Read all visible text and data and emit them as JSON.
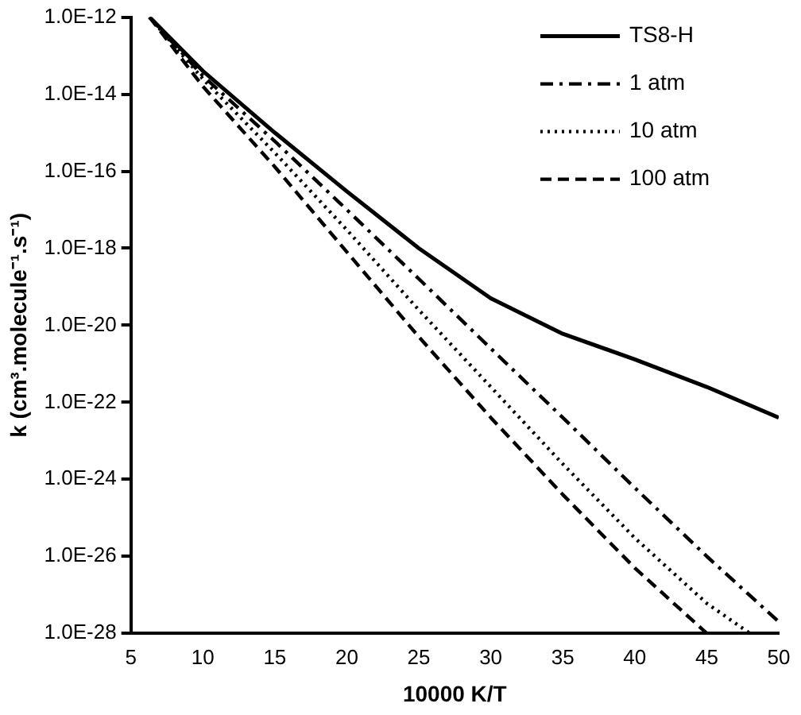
{
  "chart_data": {
    "type": "line",
    "xlabel": "10000 K/T",
    "ylabel": "k (cm³.molecule⁻¹.s⁻¹)",
    "log": "y",
    "legend": "top right",
    "marker": "none",
    "grid": false,
    "xlim": [
      5,
      50
    ],
    "xticks": [
      5,
      10,
      15,
      20,
      25,
      30,
      35,
      40,
      45,
      50
    ],
    "ylim": [
      1e-28,
      1e-12
    ],
    "yticks": [
      {
        "value": 1e-28,
        "label": "1.0E-28"
      },
      {
        "value": 1e-26,
        "label": "1.0E-26"
      },
      {
        "value": 1e-24,
        "label": "1.0E-24"
      },
      {
        "value": 1e-22,
        "label": "1.0E-22"
      },
      {
        "value": 1e-20,
        "label": "1.0E-20"
      },
      {
        "value": 1e-18,
        "label": "1.0E-18"
      },
      {
        "value": 1e-16,
        "label": "1.0E-16"
      },
      {
        "value": 1e-14,
        "label": "1.0E-14"
      },
      {
        "value": 1e-12,
        "label": "1.0E-12"
      }
    ],
    "x": [
      6.3,
      10,
      15,
      20,
      25,
      30,
      35,
      40,
      45,
      50
    ],
    "series": [
      {
        "name": "TS8-H",
        "color": "#000000",
        "line_style": "solid",
        "values": [
          1e-12,
          4e-14,
          1e-15,
          3e-17,
          1e-18,
          5e-20,
          6e-21,
          1.3e-21,
          2.5e-22,
          4e-23
        ]
      },
      {
        "name": "1 atm",
        "color": "#000000",
        "line_style": "dashdot",
        "values": [
          1e-12,
          3e-14,
          6e-16,
          1e-17,
          1.6e-19,
          2.5e-21,
          4e-23,
          6e-25,
          1e-26,
          2e-28
        ]
      },
      {
        "name": "10 atm",
        "color": "#000000",
        "line_style": "dotted",
        "x": [
          6.3,
          10,
          15,
          20,
          25,
          30,
          35,
          40,
          45,
          48
        ],
        "values": [
          1e-12,
          2.5e-14,
          3e-16,
          3e-18,
          2.5e-20,
          2.5e-22,
          2.5e-24,
          3e-26,
          6e-28,
          1e-28
        ]
      },
      {
        "name": "100 atm",
        "color": "#000000",
        "line_style": "dashed",
        "x": [
          6.3,
          10,
          15,
          20,
          25,
          30,
          35,
          40,
          45
        ],
        "values": [
          1e-12,
          1.6e-14,
          1.3e-16,
          8e-19,
          5e-21,
          4e-23,
          4e-25,
          5e-27,
          1e-28
        ]
      }
    ]
  }
}
